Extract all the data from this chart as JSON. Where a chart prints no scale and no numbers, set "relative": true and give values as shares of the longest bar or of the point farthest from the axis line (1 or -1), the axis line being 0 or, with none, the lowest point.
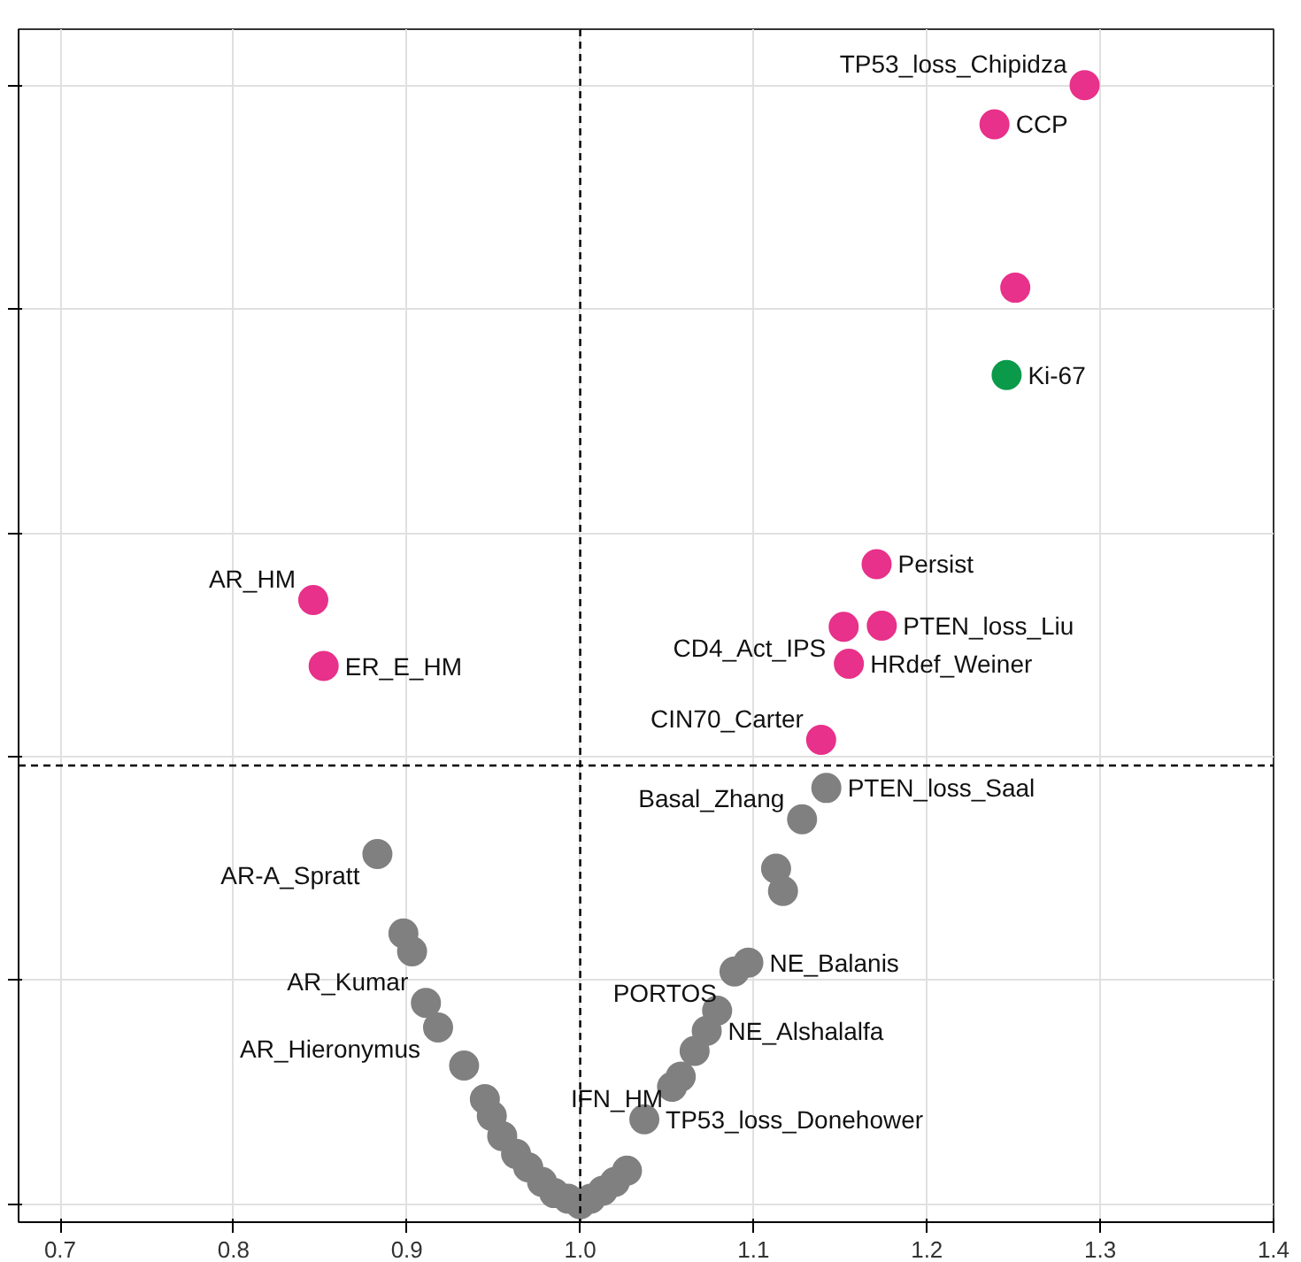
{
  "chart_data": {
    "type": "scatter",
    "relative": true,
    "marker": "circle",
    "grid": true,
    "xlim": [
      0.676,
      1.4
    ],
    "xticks": [
      0.7,
      0.8,
      0.9,
      {
        "value": 1.0,
        "label": "1.0"
      },
      1.1,
      1.2,
      1.3,
      1.4
    ],
    "series": [
      {
        "color": "#808080",
        "x": [
          0.898,
          0.903,
          0.914,
          0.93,
          0.933,
          0.945,
          0.949,
          0.955,
          0.963,
          0.97,
          0.978,
          0.985,
          0.993,
          1.0,
          1.006,
          1.013,
          1.02,
          1.027,
          1.037,
          1.053,
          1.06,
          1.066,
          1.071,
          1.113,
          1.117
        ],
        "values": [
          0.242,
          0.226,
          null,
          null,
          0.124,
          0.094,
          0.079,
          0.061,
          0.045,
          0.033,
          0.02,
          0.01,
          0.005,
          0.0,
          0.005,
          0.012,
          0.02,
          0.03,
          0.076,
          0.105,
          null,
          0.137,
          null,
          0.3,
          0.28
        ]
      },
      {
        "color": "#808080",
        "x": [
          1.142,
          1.128,
          0.883,
          1.097,
          1.089,
          1.079,
          1.073,
          1.058,
          0.911,
          0.918
        ],
        "values": [
          0.372,
          0.344,
          0.313,
          0.216,
          0.208,
          0.173,
          0.155,
          0.114,
          0.18,
          0.158
        ]
      },
      {
        "color": "#e8318a",
        "x": [
          1.291,
          1.239,
          1.251,
          1.171,
          1.174,
          1.152,
          1.155,
          1.139,
          0.846,
          0.852
        ],
        "values": [
          1.0,
          0.965,
          0.819,
          0.572,
          0.517,
          0.516,
          0.483,
          0.415,
          0.54,
          0.481
        ]
      },
      {
        "color": "#0a9a4a",
        "x": [
          1.246
        ],
        "values": [
          0.741
        ]
      }
    ],
    "ref_lines": [
      {
        "axis": "x",
        "value": 1.0,
        "line_style": "dashed",
        "color": "#000000"
      },
      {
        "axis": "y",
        "value": 0.392,
        "line_style": "dashed",
        "color": "#000000"
      }
    ],
    "annotations": [
      {
        "text": "TP53_loss_Chipidza",
        "x": 1.291,
        "y": 1.0
      },
      {
        "text": "CCP",
        "x": 1.239,
        "y": 0.965
      },
      {
        "text": "CD4_Act_IPS",
        "x": 1.152,
        "y": 0.516
      },
      {
        "text": "Ki-67",
        "x": 1.246,
        "y": 0.741
      },
      {
        "text": "CIN70_Carter",
        "x": 1.139,
        "y": 0.415
      },
      {
        "text": "Persist",
        "x": 1.171,
        "y": 0.572
      },
      {
        "text": "AR_Hieronymus",
        "x": 0.918,
        "y": 0.158
      },
      {
        "text": "PTEN_loss_Liu",
        "x": 1.174,
        "y": 0.517
      },
      {
        "text": "AR_HM",
        "x": 0.846,
        "y": 0.54
      },
      {
        "text": "HRdef_Weiner",
        "x": 1.155,
        "y": 0.483
      },
      {
        "text": "AR-A_Spratt",
        "x": 0.883,
        "y": 0.313
      },
      {
        "text": "PTEN_loss_Saal",
        "x": 1.142,
        "y": 0.372
      },
      {
        "text": "AR_Kumar",
        "x": 0.911,
        "y": 0.18
      },
      {
        "text": "NE_Balanis",
        "x": 1.097,
        "y": 0.216
      },
      {
        "text": "PORTOS",
        "x": 1.089,
        "y": 0.208
      },
      {
        "text": "NE_Alshalalfa",
        "x": 1.073,
        "y": 0.155
      },
      {
        "text": "Basal_Zhang",
        "x": 1.128,
        "y": 0.344
      },
      {
        "text": "TP53_loss_Donehower",
        "x": 1.037,
        "y": 0.076
      },
      {
        "text": "IFN_HM",
        "x": 1.058,
        "y": 0.114
      },
      {
        "text": "ER_E_HM",
        "x": 0.852,
        "y": 0.481
      }
    ]
  }
}
